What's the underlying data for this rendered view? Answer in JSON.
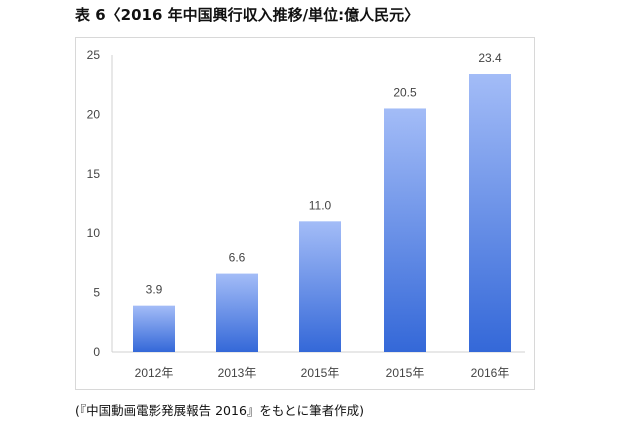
{
  "title": "表 6〈2016 年中国興行収入推移/単位:億人民元〉",
  "source_note": "(『中国動画電影発展報告 2016』をもとに筆者作成)",
  "chart_data": {
    "type": "bar",
    "title": "",
    "xlabel": "",
    "ylabel": "",
    "categories": [
      "2012年",
      "2013年",
      "2015年",
      "2015年",
      "2016年"
    ],
    "values": [
      3.9,
      6.6,
      11.0,
      20.5,
      23.4
    ],
    "data_labels": [
      "3.9",
      "6.6",
      "11.0",
      "20.5",
      "23.4"
    ],
    "ylim": [
      0,
      25
    ],
    "yticks": [
      0,
      5,
      10,
      15,
      20,
      25
    ],
    "grid": false,
    "legend": "none",
    "bar_color_top": "#a3bcf7",
    "bar_color_bottom": "#3468d8"
  }
}
